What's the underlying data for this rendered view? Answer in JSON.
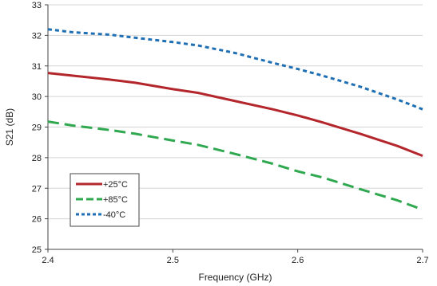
{
  "chart_data": {
    "type": "line",
    "xlabel": "Frequency (GHz)",
    "ylabel": "S21 (dB)",
    "xlim": [
      2.4,
      2.7
    ],
    "ylim": [
      25,
      33
    ],
    "xticks": [
      2.4,
      2.5,
      2.6,
      2.7
    ],
    "yticks": [
      25,
      26,
      27,
      28,
      29,
      30,
      31,
      32,
      33
    ],
    "x_tick_labels": [
      "2.4",
      "2.5",
      "2.6",
      "2.7"
    ],
    "y_tick_labels": [
      "25",
      "26",
      "27",
      "28",
      "29",
      "30",
      "31",
      "32",
      "33"
    ],
    "grid": {
      "horizontal": true,
      "vertical": false
    },
    "legend_position": "bottom-left",
    "series": [
      {
        "name": "+25°C",
        "color": "#b3262b",
        "style": "solid",
        "x": [
          2.4,
          2.42,
          2.45,
          2.47,
          2.5,
          2.52,
          2.55,
          2.58,
          2.6,
          2.62,
          2.65,
          2.68,
          2.7
        ],
        "y": [
          30.77,
          30.68,
          30.55,
          30.45,
          30.24,
          30.12,
          29.85,
          29.58,
          29.38,
          29.15,
          28.78,
          28.38,
          28.06
        ]
      },
      {
        "name": "+85°C",
        "color": "#2fa84f",
        "style": "long-dash",
        "x": [
          2.4,
          2.42,
          2.45,
          2.47,
          2.5,
          2.52,
          2.55,
          2.58,
          2.6,
          2.62,
          2.65,
          2.68,
          2.7
        ],
        "y": [
          29.18,
          29.05,
          28.9,
          28.78,
          28.56,
          28.42,
          28.12,
          27.8,
          27.55,
          27.35,
          26.97,
          26.6,
          26.3
        ]
      },
      {
        "name": "-40°C",
        "color": "#1f6fb4",
        "style": "short-dash",
        "x": [
          2.4,
          2.42,
          2.45,
          2.47,
          2.5,
          2.52,
          2.55,
          2.58,
          2.6,
          2.62,
          2.65,
          2.68,
          2.7
        ],
        "y": [
          32.2,
          32.1,
          32.02,
          31.92,
          31.78,
          31.67,
          31.42,
          31.1,
          30.9,
          30.68,
          30.32,
          29.9,
          29.58
        ]
      }
    ]
  }
}
